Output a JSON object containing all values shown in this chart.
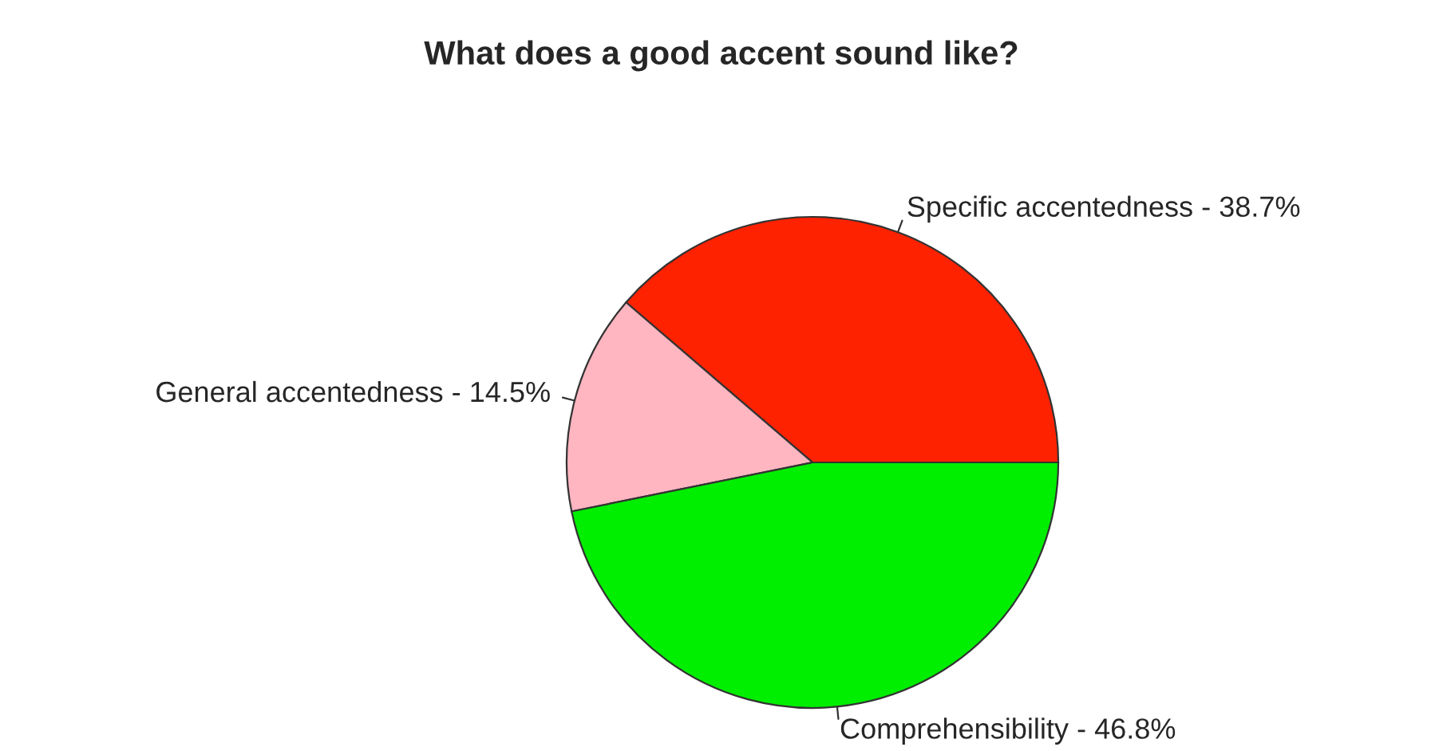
{
  "chart_data": {
    "type": "pie",
    "title": "What does a good accent sound like?",
    "categories": [
      "Specific accentedness - 38.7%",
      "General accentedness - 14.5%",
      "Comprehensibility - 46.8%"
    ],
    "values": [
      38.7,
      14.5,
      46.8
    ],
    "colors": [
      "#ff2200",
      "#ffb6c1",
      "#00ee00"
    ]
  }
}
